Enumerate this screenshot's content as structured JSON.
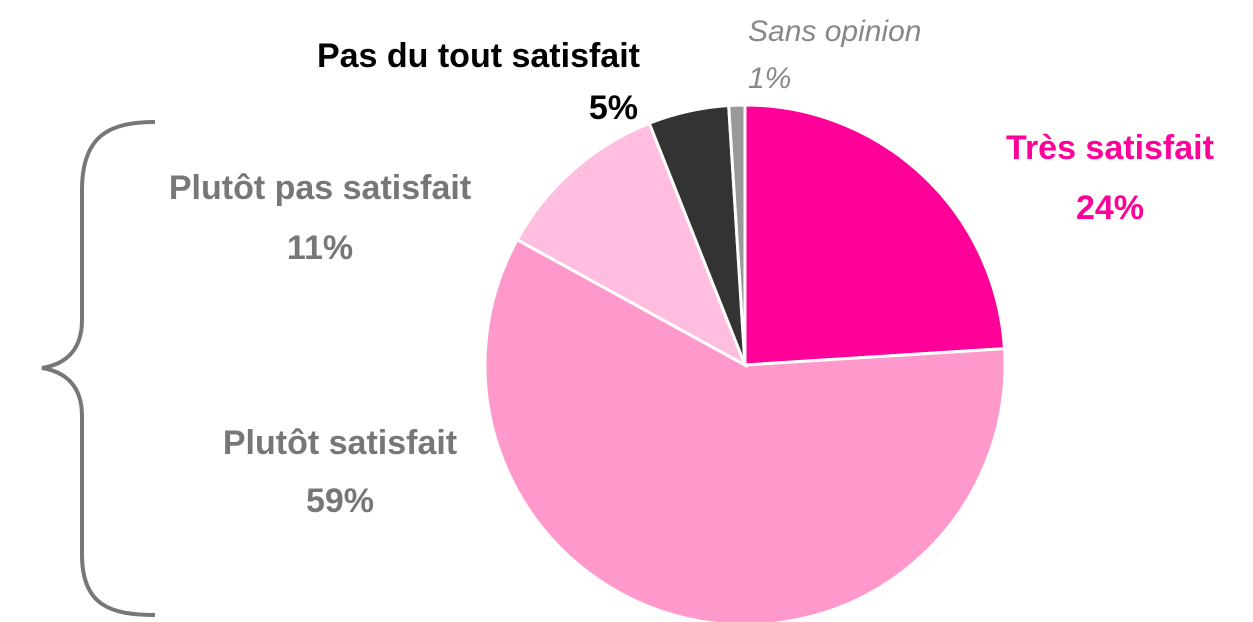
{
  "chart_data": {
    "type": "pie",
    "categories": [
      "Très satisfait",
      "Plutôt satisfait",
      "Plutôt pas satisfait",
      "Pas du tout satisfait",
      "Sans opinion"
    ],
    "values": [
      24,
      59,
      11,
      5,
      1
    ],
    "value_labels": [
      "24%",
      "59%",
      "11%",
      "5%",
      "1%"
    ],
    "colors": [
      "#ff0099",
      "#ff99cc",
      "#ffbde0",
      "#333333",
      "#999999"
    ]
  }
}
